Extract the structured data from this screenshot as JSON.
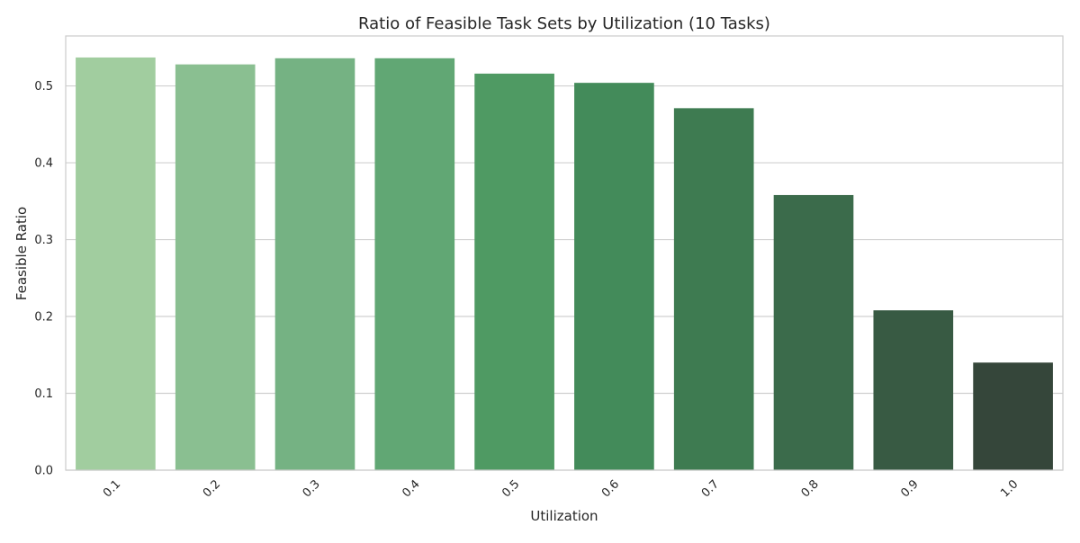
{
  "chart_data": {
    "type": "bar",
    "title": "Ratio of Feasible Task Sets by Utilization (10 Tasks)",
    "xlabel": "Utilization",
    "ylabel": "Feasible Ratio",
    "categories": [
      "0.1",
      "0.2",
      "0.3",
      "0.4",
      "0.5",
      "0.6",
      "0.7",
      "0.8",
      "0.9",
      "1.0"
    ],
    "values": [
      0.537,
      0.528,
      0.536,
      0.536,
      0.516,
      0.504,
      0.471,
      0.358,
      0.208,
      0.14
    ],
    "ylim": [
      0,
      0.565
    ],
    "yticks": [
      0.0,
      0.1,
      0.2,
      0.3,
      0.4,
      0.5
    ],
    "ytick_labels": [
      "0.0",
      "0.1",
      "0.2",
      "0.3",
      "0.4",
      "0.5"
    ],
    "grid": "horizontal",
    "xtick_rotation": "45 degrees",
    "colors": [
      "#a1cd9f",
      "#8abf91",
      "#75b283",
      "#61a774",
      "#4f9a63",
      "#438b5a",
      "#3e7b51",
      "#3b6b4b",
      "#385a43",
      "#35463a"
    ],
    "grid_color": "#d0d0d0",
    "frame_color": "#cccccc"
  }
}
